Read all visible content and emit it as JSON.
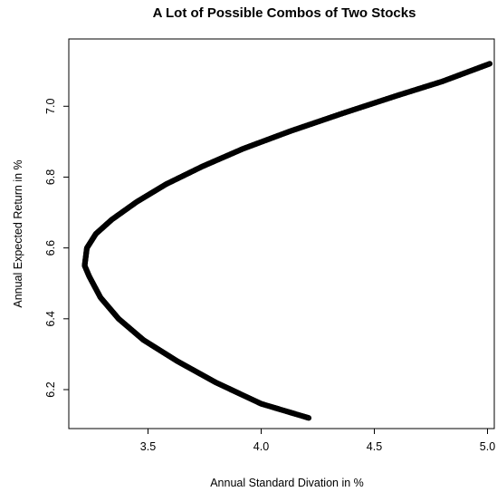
{
  "chart_data": {
    "type": "scatter",
    "title": "A Lot of Possible Combos of Two Stocks",
    "xlabel": "Annual Standard Divation in %",
    "ylabel": "Annual Expected Return in %",
    "xlim": [
      3.15,
      5.03
    ],
    "ylim": [
      6.09,
      7.19
    ],
    "xticks": [
      3.5,
      4.0,
      4.5,
      5.0
    ],
    "xtick_labels": [
      "3.5",
      "4.0",
      "4.5",
      "5.0"
    ],
    "yticks": [
      6.2,
      6.4,
      6.6,
      6.8,
      7.0
    ],
    "ytick_labels": [
      "6.2",
      "6.4",
      "6.6",
      "6.8",
      "7.0"
    ],
    "grid": false,
    "legend": "none",
    "marker": "open-circle",
    "series": [
      {
        "points": [
          {
            "x": 4.21,
            "y": 6.12
          },
          {
            "x": 4.0,
            "y": 6.16
          },
          {
            "x": 3.8,
            "y": 6.22
          },
          {
            "x": 3.63,
            "y": 6.28
          },
          {
            "x": 3.48,
            "y": 6.34
          },
          {
            "x": 3.37,
            "y": 6.4
          },
          {
            "x": 3.29,
            "y": 6.46
          },
          {
            "x": 3.24,
            "y": 6.52
          },
          {
            "x": 3.22,
            "y": 6.55
          },
          {
            "x": 3.23,
            "y": 6.6
          },
          {
            "x": 3.27,
            "y": 6.64
          },
          {
            "x": 3.34,
            "y": 6.68
          },
          {
            "x": 3.45,
            "y": 6.73
          },
          {
            "x": 3.58,
            "y": 6.78
          },
          {
            "x": 3.74,
            "y": 6.83
          },
          {
            "x": 3.92,
            "y": 6.88
          },
          {
            "x": 4.13,
            "y": 6.93
          },
          {
            "x": 4.36,
            "y": 6.98
          },
          {
            "x": 4.6,
            "y": 7.03
          },
          {
            "x": 4.8,
            "y": 7.07
          },
          {
            "x": 5.01,
            "y": 7.12
          }
        ]
      }
    ]
  }
}
